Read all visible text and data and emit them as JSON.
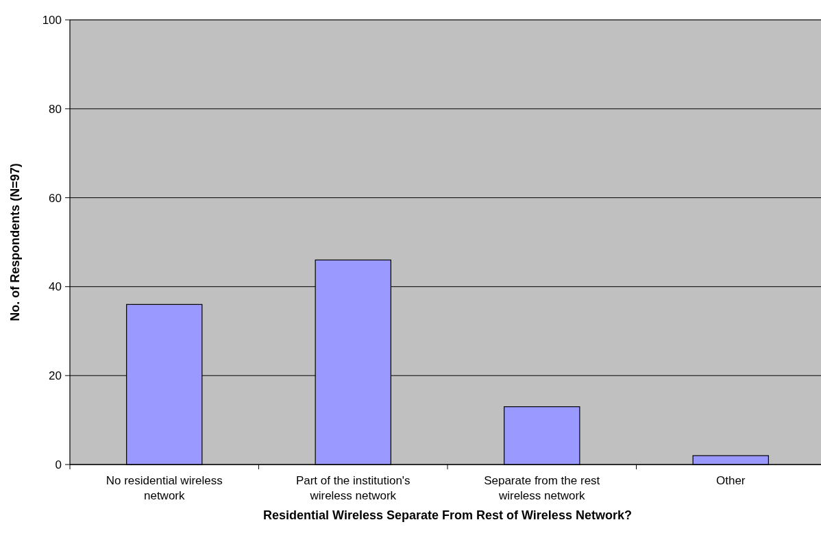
{
  "chart_data": {
    "type": "bar",
    "categories": [
      "No residential wireless network",
      "Part of the institution's wireless network",
      "Separate from the rest wireless network",
      "Other"
    ],
    "values": [
      36,
      46,
      13,
      2
    ],
    "color": "#9999ff",
    "xlabel": "Residential Wireless Separate From Rest of Wireless Network?",
    "ylabel": "No. of Respondents (N=97)",
    "ylim": [
      0,
      100
    ],
    "yticks": [
      0,
      20,
      40,
      60,
      80,
      100
    ],
    "grid": "y"
  }
}
